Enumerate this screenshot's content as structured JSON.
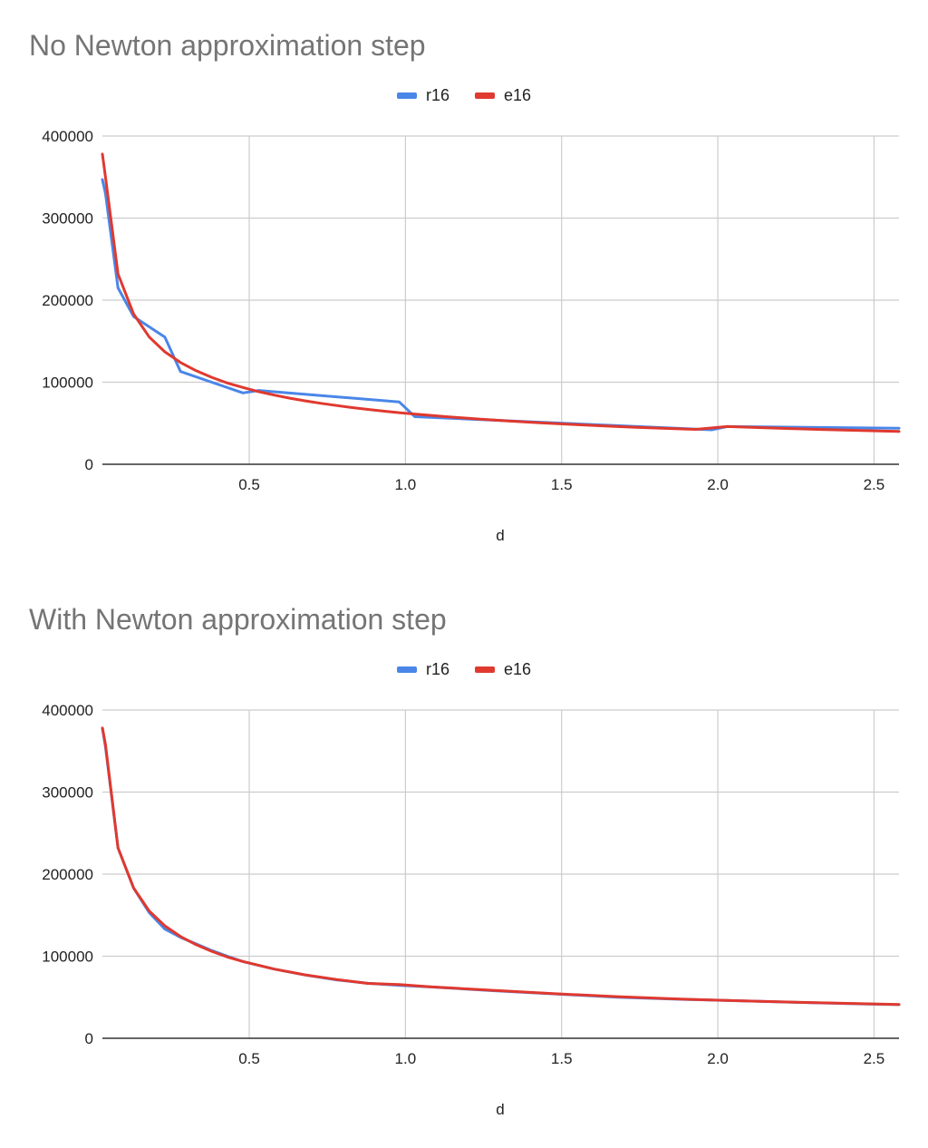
{
  "colors": {
    "r16": "#4a86e8",
    "e16": "#e0392f",
    "grid": "#cccccc",
    "axis": "#333333"
  },
  "chart_data": [
    {
      "type": "line",
      "title": "No Newton approximation step",
      "xlabel": "d",
      "ylabel": "",
      "xlim": [
        0.03,
        2.58
      ],
      "ylim": [
        0,
        400000
      ],
      "xticks": [
        0.5,
        1.0,
        1.5,
        2.0,
        2.5
      ],
      "xtick_labels": [
        "0.5",
        "1.0",
        "1.5",
        "2.0",
        "2.5"
      ],
      "yticks": [
        0,
        100000,
        200000,
        300000,
        400000
      ],
      "ytick_labels": [
        "0",
        "100000",
        "200000",
        "300000",
        "400000"
      ],
      "grid": true,
      "legend": "top-center",
      "series": [
        {
          "name": "r16",
          "x": [
            0.03,
            0.04,
            0.08,
            0.13,
            0.23,
            0.28,
            0.38,
            0.48,
            0.53,
            0.98,
            1.03,
            1.98,
            2.03,
            2.58
          ],
          "y": [
            347000,
            330000,
            215000,
            180000,
            155000,
            113000,
            100000,
            87000,
            90000,
            76000,
            58000,
            42000,
            46000,
            44000
          ]
        },
        {
          "name": "e16",
          "x": [
            0.03,
            0.04,
            0.08,
            0.13,
            0.18,
            0.23,
            0.28,
            0.33,
            0.38,
            0.43,
            0.48,
            0.53,
            0.58,
            0.63,
            0.68,
            0.73,
            0.78,
            0.83,
            0.88,
            0.93,
            0.98,
            1.03,
            1.13,
            1.23,
            1.33,
            1.43,
            1.53,
            1.63,
            1.73,
            1.83,
            1.93,
            2.03,
            2.13,
            2.23,
            2.33,
            2.43,
            2.53,
            2.58
          ],
          "y": [
            378000,
            350000,
            232000,
            183000,
            155000,
            137000,
            124000,
            114000,
            106000,
            99000,
            93600,
            88500,
            84300,
            80500,
            77200,
            74300,
            71600,
            69100,
            66900,
            64800,
            62900,
            61200,
            58000,
            55300,
            52800,
            50600,
            48600,
            46800,
            45200,
            43800,
            42500,
            46000,
            44700,
            43500,
            42400,
            41400,
            40400,
            40000
          ]
        }
      ]
    },
    {
      "type": "line",
      "title": "With Newton approximation step",
      "xlabel": "d",
      "ylabel": "",
      "xlim": [
        0.03,
        2.58
      ],
      "ylim": [
        0,
        400000
      ],
      "xticks": [
        0.5,
        1.0,
        1.5,
        2.0,
        2.5
      ],
      "xtick_labels": [
        "0.5",
        "1.0",
        "1.5",
        "2.0",
        "2.5"
      ],
      "yticks": [
        0,
        100000,
        200000,
        300000,
        400000
      ],
      "ytick_labels": [
        "0",
        "100000",
        "200000",
        "300000",
        "400000"
      ],
      "grid": true,
      "legend": "top-center",
      "series": [
        {
          "name": "r16",
          "x": [
            0.03,
            0.04,
            0.08,
            0.13,
            0.18,
            0.23,
            0.28,
            0.33,
            0.38,
            0.43,
            0.48,
            0.58,
            0.68,
            0.78,
            0.88,
            0.98,
            1.08,
            1.28,
            1.48,
            1.68,
            1.88,
            2.08,
            2.28,
            2.48,
            2.58
          ],
          "y": [
            378000,
            355000,
            232000,
            183000,
            153000,
            133000,
            123000,
            115000,
            107000,
            100000,
            93500,
            84300,
            77000,
            71200,
            67000,
            64500,
            62500,
            58000,
            54000,
            50000,
            47500,
            45500,
            43500,
            41800,
            41000
          ]
        },
        {
          "name": "e16",
          "x": [
            0.03,
            0.04,
            0.08,
            0.13,
            0.18,
            0.23,
            0.28,
            0.33,
            0.38,
            0.43,
            0.48,
            0.58,
            0.68,
            0.78,
            0.88,
            0.98,
            1.08,
            1.28,
            1.48,
            1.68,
            1.88,
            2.08,
            2.28,
            2.48,
            2.58
          ],
          "y": [
            378000,
            358000,
            232000,
            183000,
            155000,
            137000,
            124000,
            114000,
            106000,
            99000,
            93600,
            84300,
            77200,
            71600,
            66900,
            65500,
            62800,
            58500,
            54300,
            50700,
            47700,
            45500,
            43600,
            42000,
            41200
          ]
        }
      ]
    }
  ]
}
